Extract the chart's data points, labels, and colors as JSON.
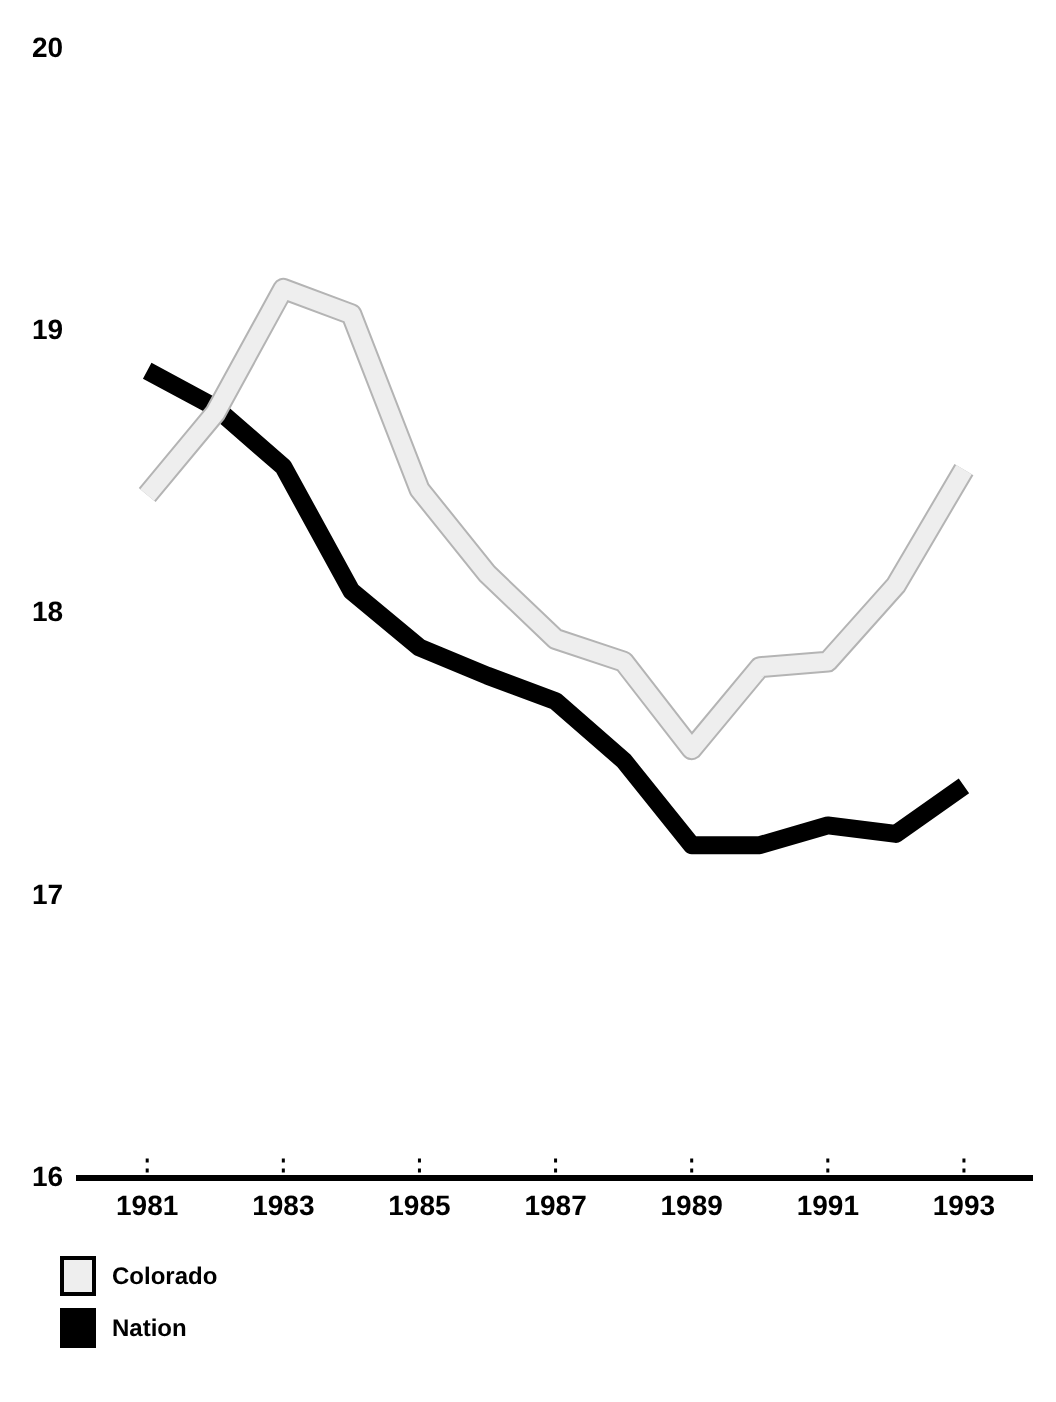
{
  "chart_data": {
    "type": "line",
    "x": [
      1981,
      1982,
      1983,
      1984,
      1985,
      1986,
      1987,
      1988,
      1989,
      1990,
      1991,
      1992,
      1993
    ],
    "series": [
      {
        "name": "Colorado",
        "color": "#eeeeee",
        "values": [
          18.42,
          18.71,
          19.15,
          19.06,
          18.44,
          18.14,
          17.91,
          17.83,
          17.52,
          17.81,
          17.83,
          18.1,
          18.51
        ]
      },
      {
        "name": "Nation",
        "color": "#000000",
        "values": [
          18.86,
          18.73,
          18.52,
          18.08,
          17.88,
          17.78,
          17.69,
          17.48,
          17.18,
          17.18,
          17.25,
          17.22,
          17.39
        ]
      }
    ],
    "xlim": [
      1980,
      1994
    ],
    "xticks": [
      1981,
      1983,
      1985,
      1987,
      1989,
      1991,
      1993
    ],
    "ylim": [
      16,
      20
    ],
    "yticks": [
      16,
      17,
      18,
      19,
      20
    ],
    "grid": false,
    "legend": "bottom left",
    "marker": "none",
    "line_style": "solid"
  }
}
